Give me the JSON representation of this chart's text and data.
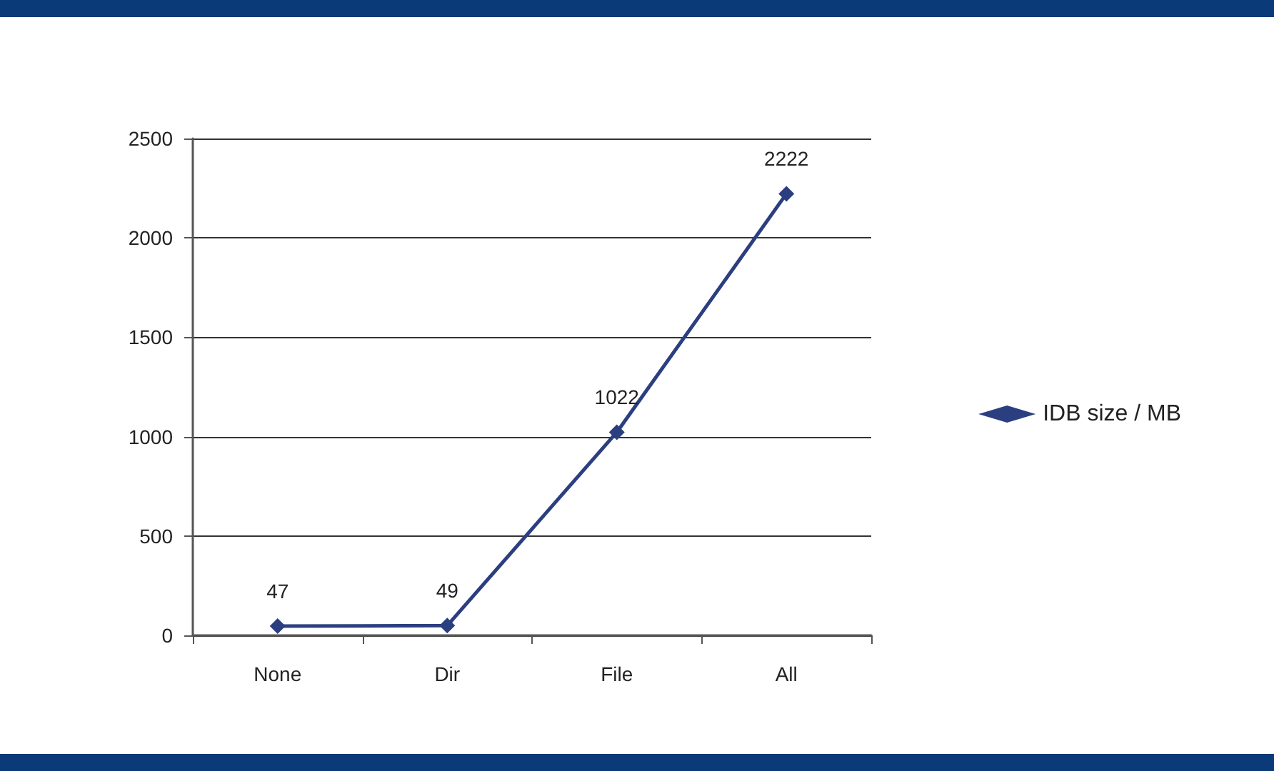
{
  "chart_data": {
    "type": "line",
    "categories": [
      "None",
      "Dir",
      "File",
      "All"
    ],
    "series": [
      {
        "name": "IDB size / MB",
        "color": "#2b3f80",
        "values": [
          47,
          49,
          1022,
          2222
        ]
      }
    ],
    "ylim": [
      0,
      2500
    ],
    "yticks": [
      0,
      500,
      1000,
      1500,
      2000,
      2500
    ],
    "grid": "y",
    "legend": "right",
    "marker": "diamond",
    "line_style": "solid",
    "data_labels": true
  }
}
